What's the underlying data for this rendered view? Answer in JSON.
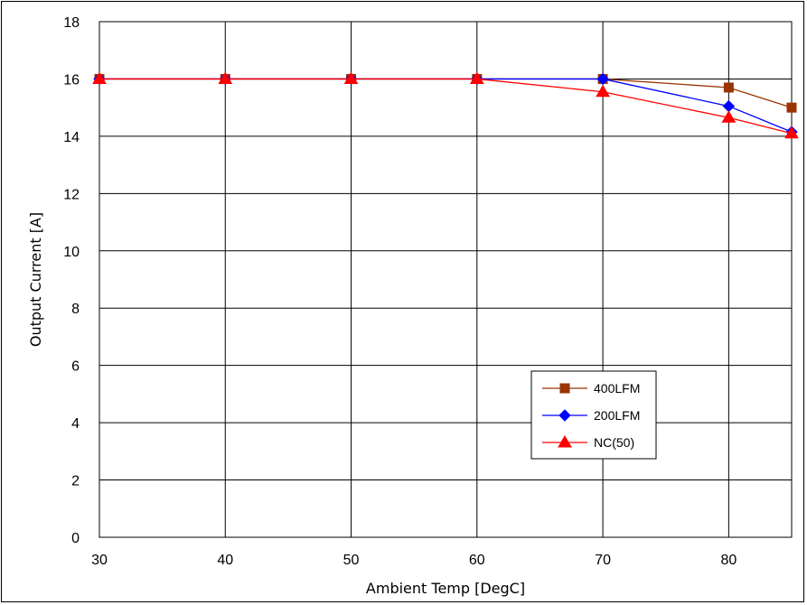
{
  "chart_data": {
    "type": "line",
    "title": "",
    "xlabel": "Ambient Temp [DegC]",
    "ylabel": "Output Current [A]",
    "xlim": [
      30,
      85
    ],
    "ylim": [
      0,
      18
    ],
    "x_ticks": [
      30,
      40,
      50,
      60,
      70,
      80
    ],
    "y_ticks": [
      0,
      2,
      4,
      6,
      8,
      10,
      12,
      14,
      16,
      18
    ],
    "grid": true,
    "legend_position": "lower-right",
    "series": [
      {
        "name": "400LFM",
        "color": "#993300",
        "marker": "square",
        "x": [
          30,
          40,
          50,
          60,
          70,
          80,
          85
        ],
        "y": [
          16,
          16,
          16,
          16,
          16,
          15.7,
          15.0
        ]
      },
      {
        "name": "200LFM",
        "color": "#0000ff",
        "marker": "diamond",
        "x": [
          30,
          40,
          50,
          60,
          70,
          80,
          85
        ],
        "y": [
          16,
          16,
          16,
          16,
          16,
          15.05,
          14.15
        ]
      },
      {
        "name": "NC(50)",
        "color": "#ff0000",
        "marker": "triangle",
        "x": [
          30,
          40,
          50,
          60,
          70,
          80,
          85
        ],
        "y": [
          16,
          16,
          16,
          16,
          15.55,
          14.65,
          14.1
        ]
      }
    ]
  }
}
